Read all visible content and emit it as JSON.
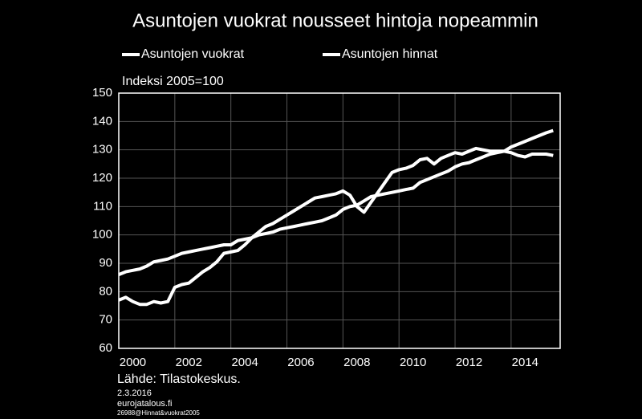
{
  "chart_data": {
    "type": "line",
    "title": "Asuntojen vuokrat nousseet hintoja nopeammin",
    "y_label": "Indeksi 2005=100",
    "source": "Lähde: Tilastokeskus.",
    "date": "2.3.2016",
    "site": "eurojatalous.fi",
    "code": "26988@Hinnat&vuokrat2005",
    "x": [
      2000,
      2000.25,
      2000.5,
      2000.75,
      2001,
      2001.25,
      2001.5,
      2001.75,
      2002,
      2002.25,
      2002.5,
      2002.75,
      2003,
      2003.25,
      2003.5,
      2003.75,
      2004,
      2004.25,
      2004.5,
      2004.75,
      2005,
      2005.25,
      2005.5,
      2005.75,
      2006,
      2006.25,
      2006.5,
      2006.75,
      2007,
      2007.25,
      2007.5,
      2007.75,
      2008,
      2008.25,
      2008.5,
      2008.75,
      2009,
      2009.25,
      2009.5,
      2009.75,
      2010,
      2010.25,
      2010.5,
      2010.75,
      2011,
      2011.25,
      2011.5,
      2011.75,
      2012,
      2012.25,
      2012.5,
      2012.75,
      2013,
      2013.25,
      2013.5,
      2013.75,
      2014,
      2014.25,
      2014.5,
      2014.75,
      2015,
      2015.25,
      2015.5
    ],
    "series": [
      {
        "name": "Asuntojen vuokrat",
        "color": "#ffffff",
        "values": [
          86,
          87,
          87.5,
          88,
          89,
          90.5,
          91,
          91.5,
          92.5,
          93.5,
          94,
          94.5,
          95,
          95.5,
          96,
          96.5,
          96.5,
          98,
          98.5,
          99,
          100,
          100.5,
          101,
          102,
          102.5,
          103,
          103.5,
          104,
          104.5,
          105,
          106,
          107,
          109,
          110,
          110.5,
          112,
          113.5,
          114,
          114.5,
          115,
          115.5,
          116,
          116.5,
          118.5,
          119.5,
          120.5,
          121.5,
          122.5,
          124,
          125,
          125.5,
          126.5,
          127.5,
          128.5,
          129,
          129.5,
          131,
          132,
          133,
          134,
          135,
          136,
          136.8
        ]
      },
      {
        "name": "Asuntojen hinnat",
        "color": "#ffffff",
        "values": [
          77,
          78,
          76.5,
          75.5,
          75.5,
          76.5,
          76,
          76.5,
          81.5,
          82.5,
          83,
          85,
          87,
          88.5,
          90.5,
          93.5,
          94,
          94.5,
          96.5,
          99,
          101,
          103,
          104,
          105.5,
          107,
          108.5,
          110,
          111.5,
          113,
          113.5,
          114,
          114.5,
          115.5,
          114,
          110,
          108,
          111.5,
          115,
          118.5,
          122,
          123,
          123.5,
          124.5,
          126.5,
          127,
          125,
          127,
          128,
          129,
          128.5,
          129.5,
          130.5,
          130,
          129.5,
          129.5,
          129.5,
          129,
          128,
          127.5,
          128.5,
          128.5,
          128.5,
          128
        ]
      }
    ],
    "xlim": [
      2000,
      2015.75
    ],
    "xticks": [
      2000,
      2002,
      2004,
      2006,
      2008,
      2010,
      2012,
      2014
    ],
    "ylim": [
      60,
      150
    ],
    "yticks": [
      60,
      70,
      80,
      90,
      100,
      110,
      120,
      130,
      140,
      150
    ],
    "grid": true
  }
}
